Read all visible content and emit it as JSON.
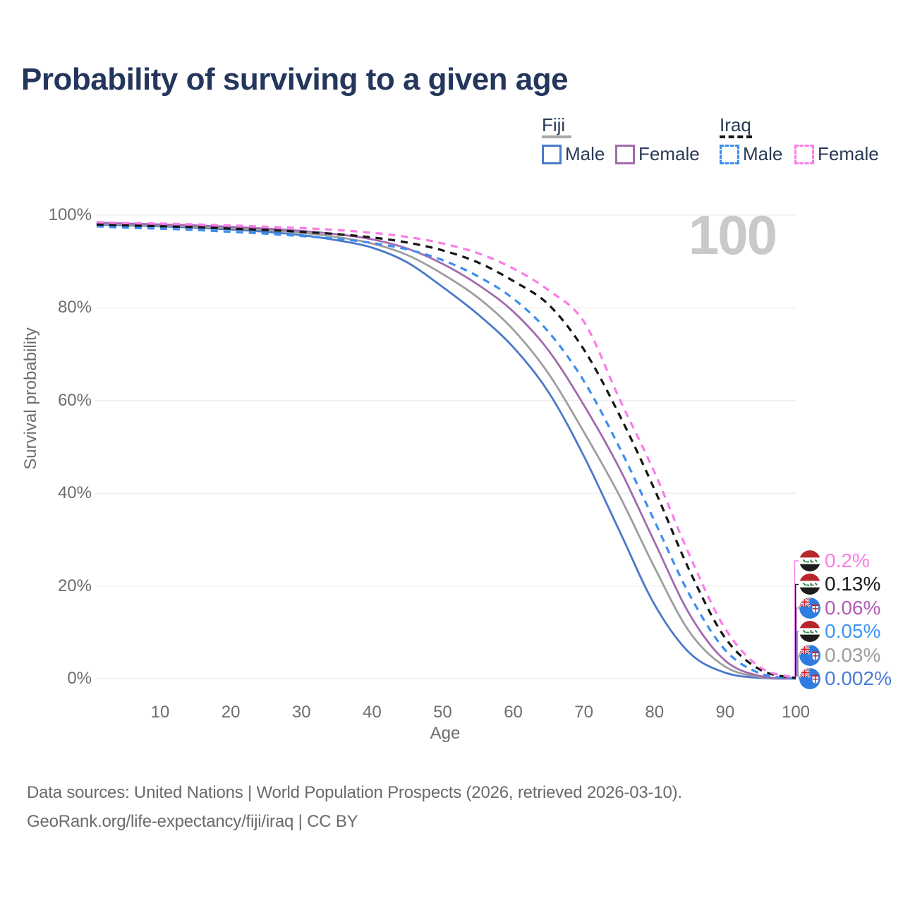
{
  "page": {
    "title": "Probability of surviving to a given age",
    "watermark_age_label": "100"
  },
  "legend": {
    "groups": [
      {
        "country": "Fiji",
        "line_style": "solid",
        "underline_color": "#a8a8a8",
        "items": [
          {
            "label": "Male",
            "color": "#4a79ca"
          },
          {
            "label": "Female",
            "color": "#a26bad"
          }
        ]
      },
      {
        "country": "Iraq",
        "line_style": "dashed",
        "underline_color": "#141414",
        "items": [
          {
            "label": "Male",
            "color": "#3c8ef0"
          },
          {
            "label": "Female",
            "color": "#fb7ce8"
          }
        ]
      }
    ]
  },
  "chart_data": {
    "type": "line",
    "title": "Probability of surviving to a given age",
    "xlabel": "Age",
    "ylabel": "Survival probability",
    "xlim": [
      1,
      100
    ],
    "ylim": [
      0,
      100
    ],
    "grid": true,
    "legend_position": "top-right",
    "x_ticks": [
      10,
      20,
      30,
      40,
      50,
      60,
      70,
      80,
      90,
      100
    ],
    "y_tick_values": [
      0,
      20,
      40,
      60,
      80,
      100
    ],
    "y_tick_labels": [
      "0%",
      "20%",
      "40%",
      "60%",
      "80%",
      "100%"
    ],
    "ages": [
      1,
      5,
      10,
      15,
      20,
      25,
      30,
      35,
      40,
      45,
      50,
      55,
      60,
      65,
      70,
      75,
      80,
      85,
      90,
      95,
      100
    ],
    "series": [
      {
        "name": "Fiji Male",
        "country": "Fiji",
        "sex": "Male",
        "style": "solid",
        "color": "#4a79ca",
        "values": [
          98.0,
          97.8,
          97.6,
          97.3,
          96.9,
          96.4,
          95.7,
          94.6,
          93.0,
          89.8,
          84.5,
          78.6,
          71.5,
          61.8,
          48.0,
          32.0,
          16.0,
          5.5,
          1.3,
          0.15,
          0.002
        ],
        "end_label": "0.002%"
      },
      {
        "name": "Fiji All",
        "country": "Fiji",
        "sex": "All",
        "style": "solid",
        "color": "#9e9e9e",
        "values": [
          98.2,
          98.0,
          97.8,
          97.5,
          97.2,
          96.8,
          96.2,
          95.3,
          93.9,
          91.4,
          87.3,
          82.2,
          75.3,
          65.8,
          53.2,
          39.6,
          24.0,
          10.0,
          2.6,
          0.35,
          0.03
        ],
        "end_label": "0.03%"
      },
      {
        "name": "Fiji Female",
        "country": "Fiji",
        "sex": "Female",
        "style": "solid",
        "color": "#a26bad",
        "values": [
          98.4,
          98.2,
          98.0,
          97.8,
          97.5,
          97.1,
          96.6,
          95.9,
          94.8,
          92.8,
          89.5,
          85.0,
          79.2,
          70.8,
          59.0,
          45.5,
          29.5,
          13.8,
          3.9,
          0.55,
          0.06
        ],
        "end_label": "0.06%"
      },
      {
        "name": "Iraq Male",
        "country": "Iraq",
        "sex": "Male",
        "style": "dashed",
        "color": "#3c8ef0",
        "values": [
          97.6,
          97.3,
          97.1,
          96.8,
          96.4,
          96.0,
          95.5,
          94.9,
          94.0,
          92.6,
          90.3,
          86.8,
          82.0,
          74.8,
          64.2,
          50.0,
          34.0,
          18.0,
          6.2,
          1.1,
          0.05
        ],
        "end_label": "0.05%"
      },
      {
        "name": "Iraq All",
        "country": "Iraq",
        "sex": "All",
        "style": "dashed",
        "color": "#141414",
        "values": [
          98.0,
          97.8,
          97.6,
          97.4,
          97.1,
          96.8,
          96.4,
          95.9,
          95.2,
          94.1,
          92.4,
          89.8,
          85.8,
          80.7,
          71.0,
          57.0,
          40.8,
          23.2,
          8.8,
          1.9,
          0.13
        ],
        "end_label": "0.13%"
      },
      {
        "name": "Iraq Female",
        "country": "Iraq",
        "sex": "Female",
        "style": "dashed",
        "color": "#fb7ce8",
        "values": [
          98.5,
          98.3,
          98.2,
          98.0,
          97.8,
          97.5,
          97.2,
          96.8,
          96.2,
          95.3,
          93.9,
          91.8,
          88.5,
          83.8,
          77.0,
          60.5,
          44.5,
          26.5,
          10.8,
          2.4,
          0.2
        ],
        "end_label": "0.2%"
      }
    ],
    "end_labels": [
      {
        "value": "0.2%",
        "country": "Iraq",
        "series": "Iraq Female",
        "color": "#fb7ce8"
      },
      {
        "value": "0.13%",
        "country": "Iraq",
        "series": "Iraq All",
        "color": "#1a1a1a"
      },
      {
        "value": "0.06%",
        "country": "Fiji",
        "series": "Fiji Female",
        "color": "#b25cb8"
      },
      {
        "value": "0.05%",
        "country": "Iraq",
        "series": "Iraq Male",
        "color": "#3c96f7"
      },
      {
        "value": "0.03%",
        "country": "Fiji",
        "series": "Fiji All",
        "color": "#9e9e9e"
      },
      {
        "value": "0.002%",
        "country": "Fiji",
        "series": "Fiji Male",
        "color": "#4a7cd6"
      }
    ]
  },
  "footer": {
    "line1": "Data sources: United Nations | World Population Prospects (2026, retrieved 2026-03-10).",
    "line2": "GeoRank.org/life-expectancy/fiji/iraq | CC BY"
  }
}
